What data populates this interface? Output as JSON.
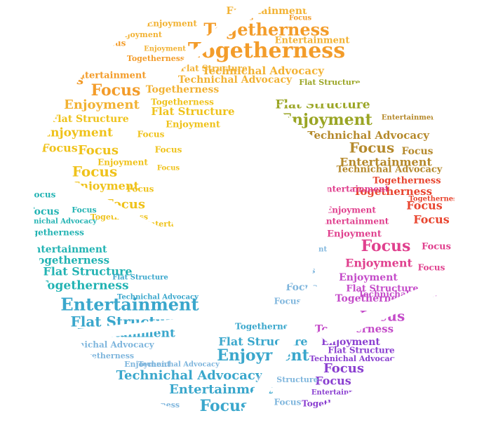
{
  "words": {
    "togetherness": "Togetherness",
    "focus": "Focus",
    "enjoyment": "Enjoyment",
    "entertainment": "Entertainment",
    "flat_structure": "Flat Structure",
    "technichal_advocacy": "Technichal Advocacy"
  },
  "colors": {
    "orange": "#f39c2a",
    "amber": "#f2b233",
    "yellow": "#efc21a",
    "olive": "#9aa524",
    "brown": "#b5892b",
    "red": "#e8452f",
    "pink": "#e0408e",
    "magenta": "#c44cc9",
    "violet": "#8a3fd0",
    "teal": "#22b3b3",
    "cyan": "#3aa7cc",
    "lightblue": "#7fb6dd"
  }
}
